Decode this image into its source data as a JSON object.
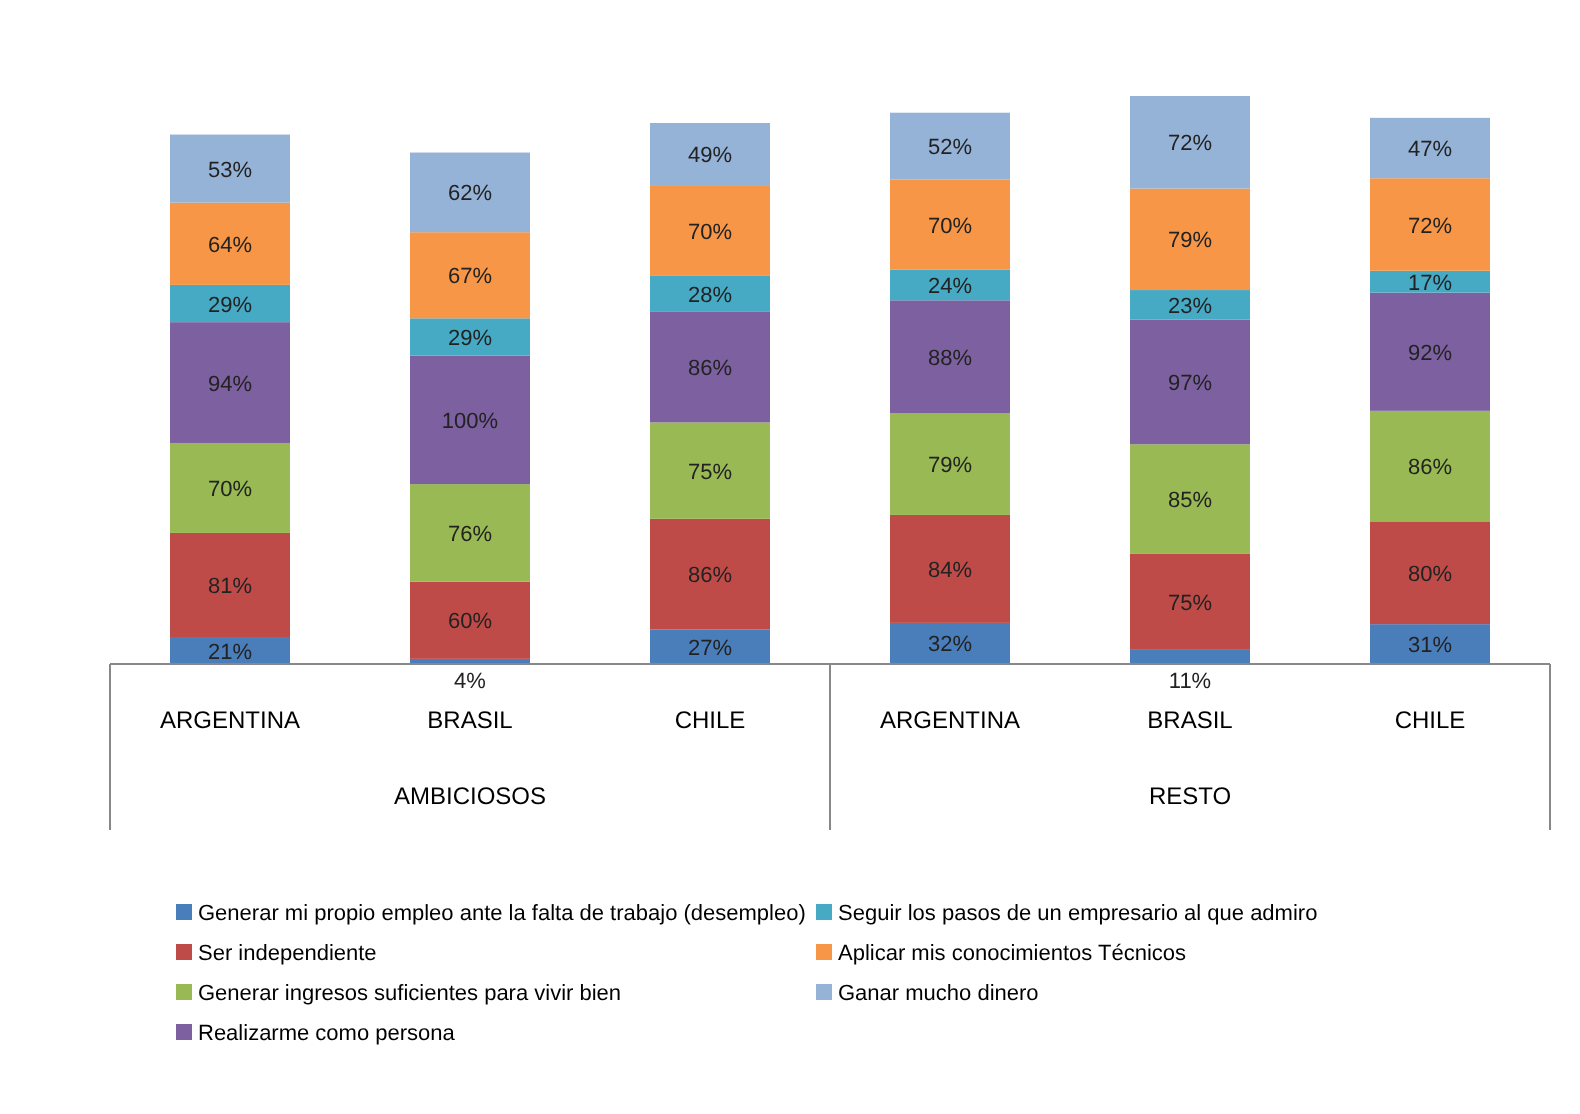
{
  "chart_data": {
    "type": "bar",
    "stacked": true,
    "legend": "bottom",
    "categories": [
      "ARGENTINA",
      "BRASIL",
      "CHILE",
      "ARGENTINA",
      "BRASIL",
      "CHILE"
    ],
    "annotations": [
      "AMBICIOSOS",
      "RESTO"
    ],
    "series": [
      {
        "name": "Generar mi propio empleo ante la falta de trabajo (desempleo)",
        "color": "#4a7ebb",
        "values": [
          21,
          4,
          27,
          32,
          11,
          31
        ],
        "value_labels": [
          "21%",
          "4%",
          "27%",
          "32%",
          "11%",
          "31%"
        ]
      },
      {
        "name": "Ser independiente",
        "color": "#be4b48",
        "values": [
          81,
          60,
          86,
          84,
          75,
          80
        ],
        "value_labels": [
          "81%",
          "60%",
          "86%",
          "84%",
          "75%",
          "80%"
        ]
      },
      {
        "name": "Generar ingresos suficientes para vivir bien",
        "color": "#98b954",
        "values": [
          70,
          76,
          75,
          79,
          85,
          86
        ],
        "value_labels": [
          "70%",
          "76%",
          "75%",
          "79%",
          "85%",
          "86%"
        ]
      },
      {
        "name": "Realizarme como persona",
        "color": "#7d60a0",
        "values": [
          94,
          100,
          86,
          88,
          97,
          92
        ],
        "value_labels": [
          "94%",
          "100%",
          "86%",
          "88%",
          "97%",
          "92%"
        ]
      },
      {
        "name": "Seguir los pasos de un empresario al que admiro",
        "color": "#46aac5",
        "values": [
          29,
          29,
          28,
          24,
          23,
          17
        ],
        "value_labels": [
          "29%",
          "29%",
          "28%",
          "24%",
          "23%",
          "17%"
        ]
      },
      {
        "name": "Aplicar mis conocimientos Técnicos",
        "color": "#f79646",
        "values": [
          64,
          67,
          70,
          70,
          79,
          72
        ],
        "value_labels": [
          "64%",
          "67%",
          "70%",
          "70%",
          "79%",
          "72%"
        ]
      },
      {
        "name": "Ganar mucho dinero",
        "color": "#95b3d7",
        "values": [
          53,
          62,
          49,
          52,
          72,
          47
        ],
        "value_labels": [
          "53%",
          "62%",
          "49%",
          "52%",
          "72%",
          "47%"
        ]
      }
    ]
  }
}
